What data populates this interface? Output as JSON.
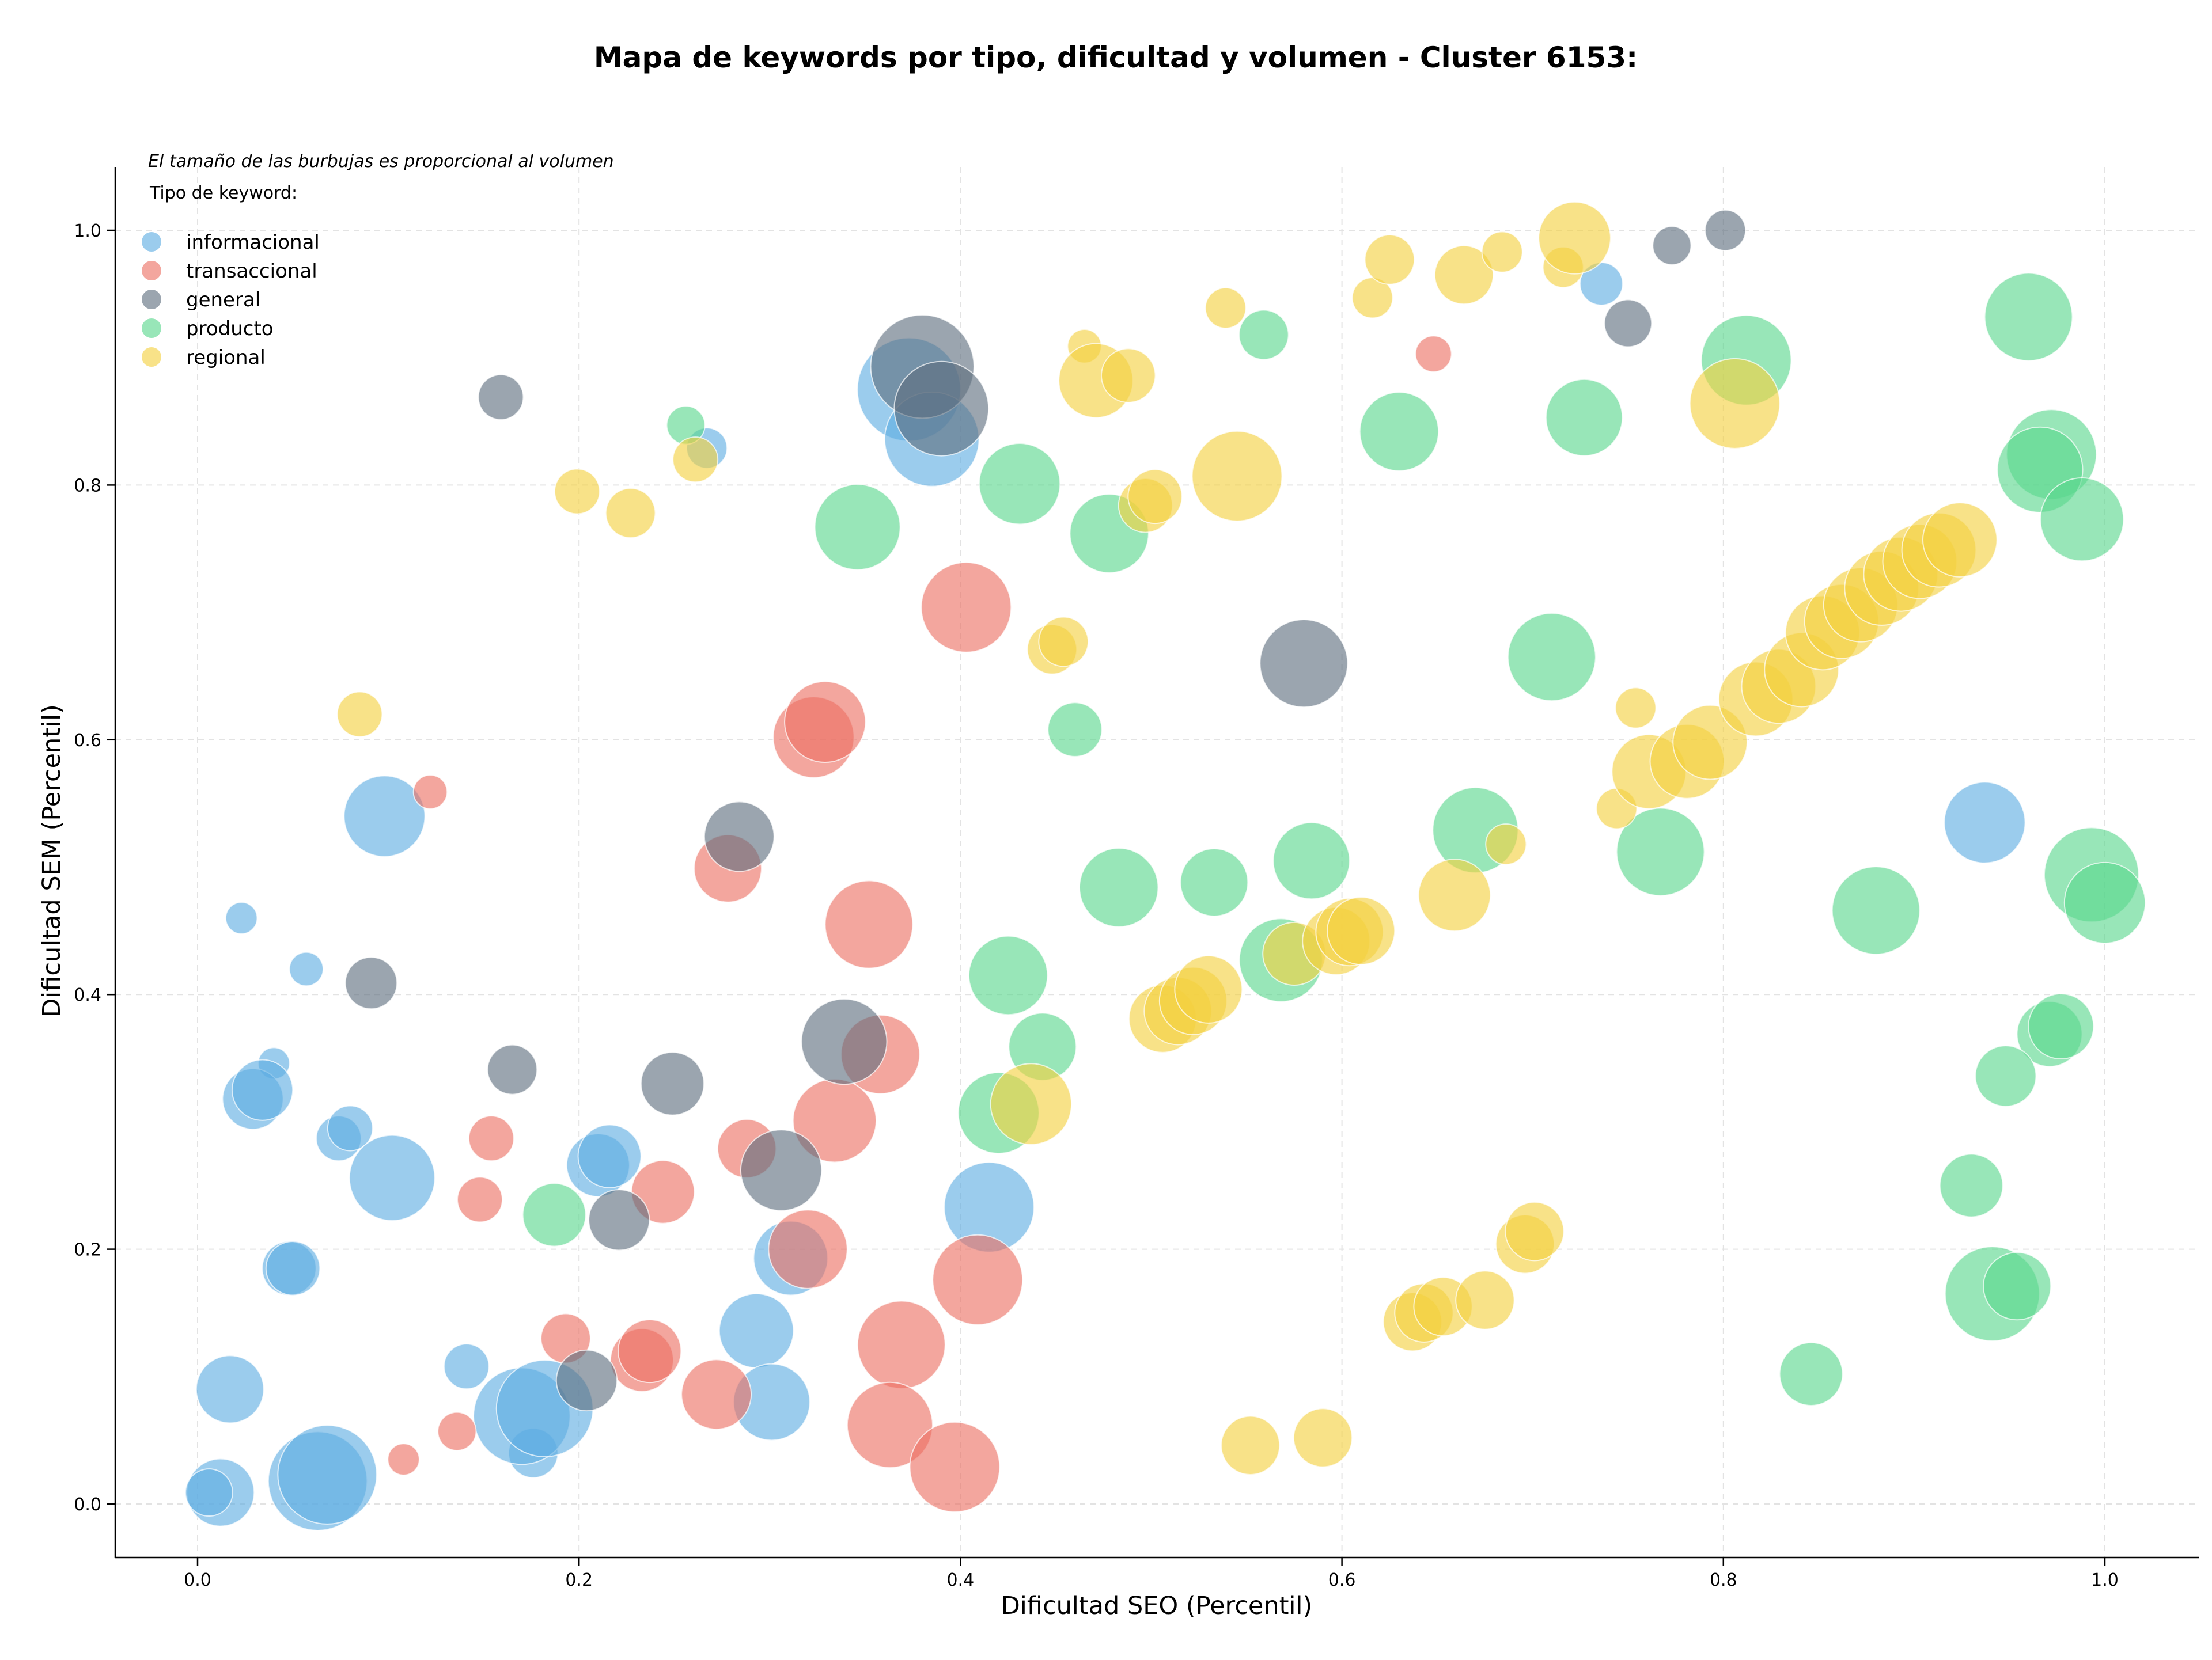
{
  "chart_data": {
    "type": "scatter",
    "title": "Mapa de keywords por tipo, dificultad y volumen - Cluster 6153:",
    "xlabel": "Dificultad SEO (Percentil)",
    "ylabel": "Dificultad SEM (Percentil)",
    "xlim": [
      -0.04,
      1.05
    ],
    "ylim": [
      -0.04,
      1.05
    ],
    "xticks": [
      "0.0",
      "0.2",
      "0.4",
      "0.6",
      "0.8",
      "1.0"
    ],
    "yticks": [
      "0.0",
      "0.2",
      "0.4",
      "0.6",
      "0.8",
      "1.0"
    ],
    "grid": true,
    "grid_style": "dashed",
    "note": "El tamaño de las burbujas es proporcional al volumen",
    "legend_title": "Tipo de keyword:",
    "legend_position": "top-left",
    "series": [
      {
        "name": "informacional",
        "color": "#5dade2",
        "points": [
          [
            0.267,
            0.829,
            18
          ],
          [
            0.098,
            0.54,
            36
          ],
          [
            0.023,
            0.46,
            14
          ],
          [
            0.057,
            0.42,
            15
          ],
          [
            0.04,
            0.346,
            14
          ],
          [
            0.029,
            0.318,
            27
          ],
          [
            0.034,
            0.325,
            27
          ],
          [
            0.074,
            0.287,
            20
          ],
          [
            0.08,
            0.295,
            20
          ],
          [
            0.102,
            0.256,
            38
          ],
          [
            0.21,
            0.266,
            28
          ],
          [
            0.216,
            0.273,
            28
          ],
          [
            0.048,
            0.185,
            24
          ],
          [
            0.05,
            0.185,
            24
          ],
          [
            0.017,
            0.09,
            30
          ],
          [
            0.141,
            0.108,
            20
          ],
          [
            0.176,
            0.04,
            22
          ],
          [
            0.17,
            0.069,
            43
          ],
          [
            0.182,
            0.075,
            43
          ],
          [
            0.293,
            0.136,
            33
          ],
          [
            0.301,
            0.08,
            34
          ],
          [
            0.311,
            0.193,
            33
          ],
          [
            0.415,
            0.233,
            40
          ],
          [
            0.012,
            0.009,
            30
          ],
          [
            0.006,
            0.009,
            21
          ],
          [
            0.063,
            0.018,
            44
          ],
          [
            0.068,
            0.023,
            44
          ],
          [
            0.373,
            0.875,
            46
          ],
          [
            0.385,
            0.836,
            42
          ],
          [
            0.736,
            0.958,
            19
          ],
          [
            0.937,
            0.535,
            36
          ]
        ]
      },
      {
        "name": "transaccional",
        "color": "#ec7063",
        "points": [
          [
            0.122,
            0.559,
            15
          ],
          [
            0.278,
            0.499,
            30
          ],
          [
            0.323,
            0.602,
            36
          ],
          [
            0.329,
            0.614,
            36
          ],
          [
            0.403,
            0.704,
            40
          ],
          [
            0.352,
            0.455,
            39
          ],
          [
            0.358,
            0.353,
            35
          ],
          [
            0.334,
            0.301,
            37
          ],
          [
            0.288,
            0.279,
            26
          ],
          [
            0.244,
            0.245,
            28
          ],
          [
            0.154,
            0.287,
            20
          ],
          [
            0.148,
            0.239,
            20
          ],
          [
            0.32,
            0.2,
            35
          ],
          [
            0.409,
            0.176,
            40
          ],
          [
            0.369,
            0.125,
            39
          ],
          [
            0.193,
            0.13,
            22
          ],
          [
            0.233,
            0.113,
            28
          ],
          [
            0.237,
            0.12,
            28
          ],
          [
            0.272,
            0.086,
            31
          ],
          [
            0.363,
            0.062,
            38
          ],
          [
            0.397,
            0.029,
            40
          ],
          [
            0.136,
            0.057,
            17
          ],
          [
            0.108,
            0.035,
            14
          ],
          [
            0.648,
            0.903,
            16
          ]
        ]
      },
      {
        "name": "general",
        "color": "#5d6d7e",
        "points": [
          [
            0.159,
            0.869,
            20
          ],
          [
            0.38,
            0.893,
            46
          ],
          [
            0.39,
            0.86,
            42
          ],
          [
            0.091,
            0.409,
            23
          ],
          [
            0.165,
            0.341,
            22
          ],
          [
            0.249,
            0.33,
            28
          ],
          [
            0.284,
            0.524,
            31
          ],
          [
            0.339,
            0.363,
            38
          ],
          [
            0.306,
            0.262,
            36
          ],
          [
            0.221,
            0.223,
            27
          ],
          [
            0.204,
            0.097,
            27
          ],
          [
            0.58,
            0.66,
            39
          ],
          [
            0.75,
            0.927,
            21
          ],
          [
            0.773,
            0.988,
            17
          ],
          [
            0.801,
            1.0,
            18
          ]
        ]
      },
      {
        "name": "producto",
        "color": "#58d68d",
        "points": [
          [
            0.256,
            0.847,
            17
          ],
          [
            0.346,
            0.767,
            38
          ],
          [
            0.431,
            0.801,
            36
          ],
          [
            0.478,
            0.762,
            35
          ],
          [
            0.46,
            0.608,
            24
          ],
          [
            0.559,
            0.918,
            22
          ],
          [
            0.63,
            0.842,
            35
          ],
          [
            0.727,
            0.853,
            34
          ],
          [
            0.812,
            0.898,
            40
          ],
          [
            0.96,
            0.932,
            39
          ],
          [
            0.972,
            0.824,
            40
          ],
          [
            0.966,
            0.812,
            38
          ],
          [
            0.988,
            0.773,
            37
          ],
          [
            0.71,
            0.665,
            39
          ],
          [
            0.483,
            0.484,
            35
          ],
          [
            0.533,
            0.488,
            30
          ],
          [
            0.584,
            0.505,
            34
          ],
          [
            0.67,
            0.529,
            38
          ],
          [
            0.767,
            0.512,
            39
          ],
          [
            0.425,
            0.415,
            35
          ],
          [
            0.443,
            0.359,
            30
          ],
          [
            0.42,
            0.307,
            36
          ],
          [
            0.187,
            0.227,
            28
          ],
          [
            0.568,
            0.427,
            37
          ],
          [
            0.88,
            0.466,
            39
          ],
          [
            0.993,
            0.494,
            42
          ],
          [
            1.0,
            0.472,
            36
          ],
          [
            0.971,
            0.369,
            29
          ],
          [
            0.977,
            0.375,
            29
          ],
          [
            0.948,
            0.336,
            27
          ],
          [
            0.93,
            0.25,
            28
          ],
          [
            0.941,
            0.165,
            42
          ],
          [
            0.954,
            0.171,
            30
          ],
          [
            0.846,
            0.102,
            28
          ]
        ]
      },
      {
        "name": "regional",
        "color": "#f4d03f",
        "points": [
          [
            0.085,
            0.62,
            20
          ],
          [
            0.199,
            0.795,
            20
          ],
          [
            0.227,
            0.778,
            22
          ],
          [
            0.261,
            0.82,
            20
          ],
          [
            0.465,
            0.909,
            15
          ],
          [
            0.471,
            0.882,
            33
          ],
          [
            0.488,
            0.886,
            24
          ],
          [
            0.497,
            0.784,
            24
          ],
          [
            0.502,
            0.791,
            24
          ],
          [
            0.539,
            0.939,
            18
          ],
          [
            0.545,
            0.807,
            40
          ],
          [
            0.448,
            0.671,
            22
          ],
          [
            0.454,
            0.677,
            22
          ],
          [
            0.616,
            0.947,
            18
          ],
          [
            0.625,
            0.977,
            22
          ],
          [
            0.664,
            0.965,
            26
          ],
          [
            0.684,
            0.983,
            18
          ],
          [
            0.716,
            0.971,
            18
          ],
          [
            0.722,
            0.994,
            32
          ],
          [
            0.806,
            0.864,
            40
          ],
          [
            0.506,
            0.381,
            30
          ],
          [
            0.514,
            0.387,
            30
          ],
          [
            0.522,
            0.395,
            30
          ],
          [
            0.53,
            0.404,
            30
          ],
          [
            0.575,
            0.432,
            28
          ],
          [
            0.597,
            0.442,
            30
          ],
          [
            0.604,
            0.449,
            30
          ],
          [
            0.61,
            0.45,
            30
          ],
          [
            0.437,
            0.314,
            36
          ],
          [
            0.659,
            0.478,
            32
          ],
          [
            0.686,
            0.518,
            18
          ],
          [
            0.744,
            0.546,
            18
          ],
          [
            0.754,
            0.625,
            18
          ],
          [
            0.761,
            0.575,
            33
          ],
          [
            0.781,
            0.583,
            33
          ],
          [
            0.793,
            0.598,
            33
          ],
          [
            0.817,
            0.632,
            33
          ],
          [
            0.829,
            0.642,
            33
          ],
          [
            0.841,
            0.655,
            33
          ],
          [
            0.852,
            0.684,
            33
          ],
          [
            0.862,
            0.693,
            33
          ],
          [
            0.872,
            0.706,
            33
          ],
          [
            0.883,
            0.719,
            33
          ],
          [
            0.893,
            0.73,
            33
          ],
          [
            0.903,
            0.74,
            33
          ],
          [
            0.913,
            0.749,
            33
          ],
          [
            0.924,
            0.757,
            33
          ],
          [
            0.696,
            0.204,
            26
          ],
          [
            0.701,
            0.214,
            26
          ],
          [
            0.637,
            0.143,
            26
          ],
          [
            0.643,
            0.15,
            26
          ],
          [
            0.653,
            0.155,
            26
          ],
          [
            0.675,
            0.16,
            26
          ],
          [
            0.552,
            0.046,
            26
          ],
          [
            0.59,
            0.052,
            26
          ]
        ]
      }
    ]
  }
}
